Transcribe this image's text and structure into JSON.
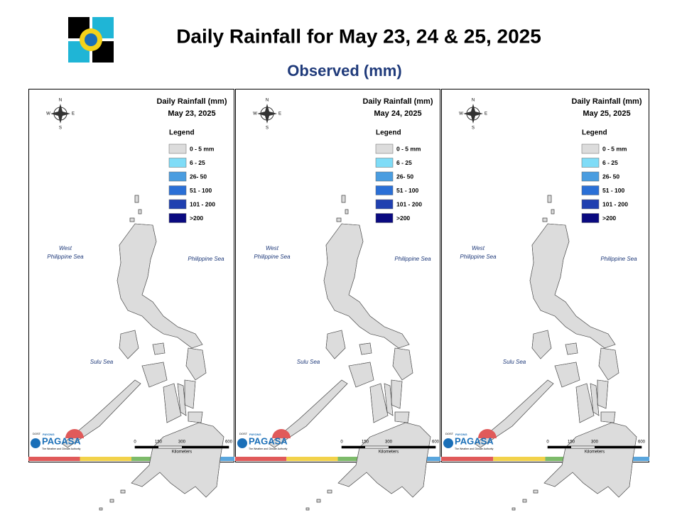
{
  "header": {
    "title": "Daily Rainfall for May 23, 24 & 25, 2025",
    "subtitle": "Observed (mm)"
  },
  "legend": {
    "title": "Legend",
    "items": [
      {
        "label": "0 - 5 mm",
        "color": "#dcdcdc"
      },
      {
        "label": "6 - 25",
        "color": "#7fdcf7"
      },
      {
        "label": "26- 50",
        "color": "#4a9de0"
      },
      {
        "label": "51 - 100",
        "color": "#2a6fd6"
      },
      {
        "label": "101 - 200",
        "color": "#2040b0"
      },
      {
        "label": ">200",
        "color": "#0a0a80"
      }
    ]
  },
  "panels": [
    {
      "heading": "Daily Rainfall (mm)",
      "date": "May 23, 2025"
    },
    {
      "heading": "Daily Rainfall (mm)",
      "date": "May 24, 2025"
    },
    {
      "heading": "Daily Rainfall (mm)",
      "date": "May 25, 2025"
    }
  ],
  "map_labels": {
    "west_sea": [
      "West",
      "Philippine Sea"
    ],
    "east_sea": "Philippine Sea",
    "south_sea": "Sulu Sea"
  },
  "compass": {
    "n": "N",
    "e": "E",
    "s": "S",
    "w": "W"
  },
  "scale": {
    "ticks": [
      0,
      150,
      300,
      600
    ],
    "unit": "Kilometers"
  },
  "logo": {
    "agency": "DOST",
    "brand_top": "PAYONG",
    "brand": "PAGASA",
    "tagline": "The Weather and Climate Authority"
  }
}
